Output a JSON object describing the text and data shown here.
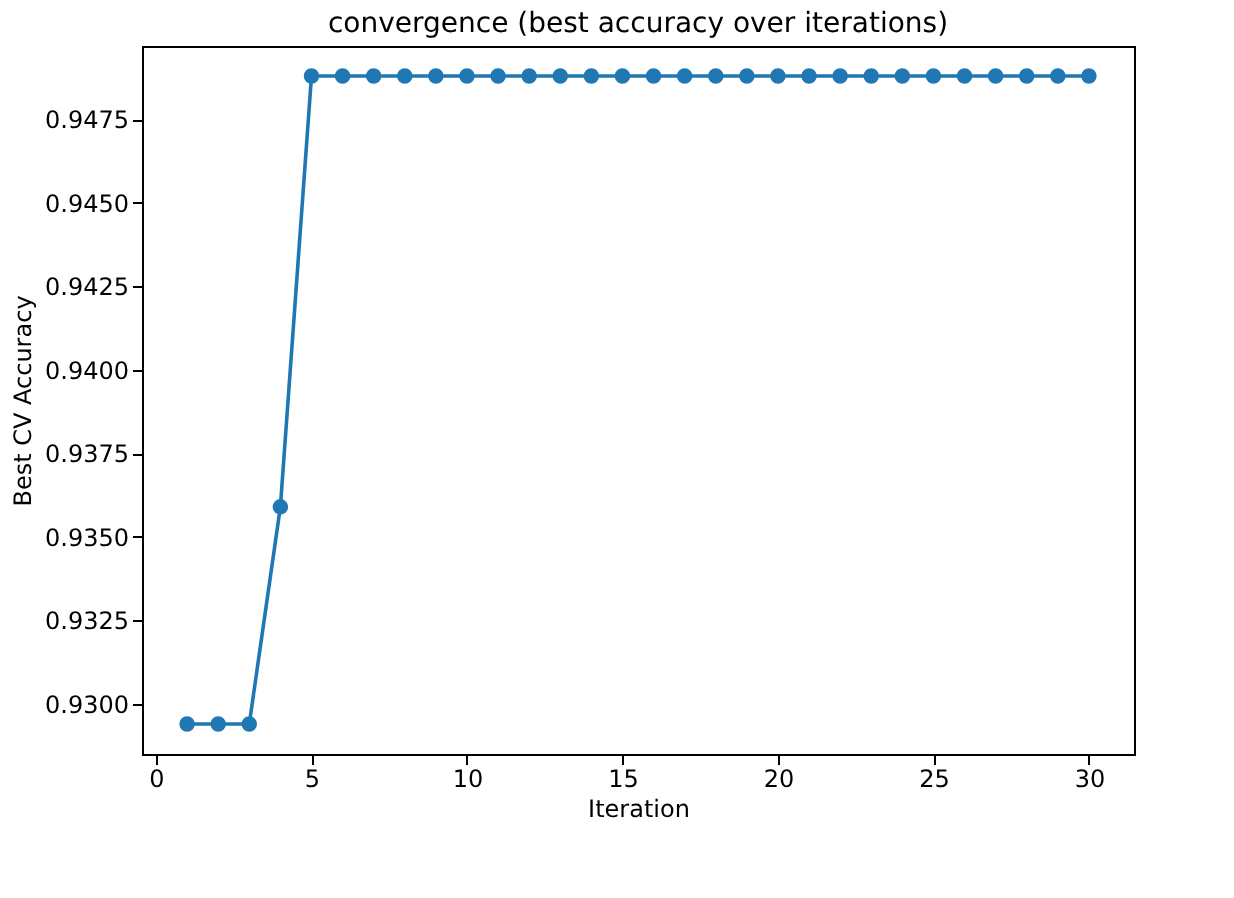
{
  "chart_data": {
    "type": "line",
    "title": "convergence (best accuracy over iterations)",
    "xlabel": "Iteration",
    "ylabel": "Best CV Accuracy",
    "x": [
      1,
      2,
      3,
      4,
      5,
      6,
      7,
      8,
      9,
      10,
      11,
      12,
      13,
      14,
      15,
      16,
      17,
      18,
      19,
      20,
      21,
      22,
      23,
      24,
      25,
      26,
      27,
      28,
      29,
      30
    ],
    "series": [
      {
        "color": "#1f77b4",
        "values": [
          0.9294,
          0.9294,
          0.9294,
          0.9359,
          0.9488,
          0.9488,
          0.9488,
          0.9488,
          0.9488,
          0.9488,
          0.9488,
          0.9488,
          0.9488,
          0.9488,
          0.9488,
          0.9488,
          0.9488,
          0.9488,
          0.9488,
          0.9488,
          0.9488,
          0.9488,
          0.9488,
          0.9488,
          0.9488,
          0.9488,
          0.9488,
          0.9488,
          0.9488,
          0.9488
        ]
      }
    ],
    "xlim": [
      -0.45,
      31.45
    ],
    "xticks": [
      0,
      5,
      10,
      15,
      20,
      25,
      30
    ],
    "ylim": [
      0.9285,
      0.9497
    ],
    "yticks": [
      {
        "value": 0.93,
        "label": "0.9300"
      },
      {
        "value": 0.9325,
        "label": "0.9325"
      },
      {
        "value": 0.935,
        "label": "0.9350"
      },
      {
        "value": 0.9375,
        "label": "0.9375"
      },
      {
        "value": 0.94,
        "label": "0.9400"
      },
      {
        "value": 0.9425,
        "label": "0.9425"
      },
      {
        "value": 0.945,
        "label": "0.9450"
      },
      {
        "value": 0.9475,
        "label": "0.9475"
      }
    ],
    "grid": false,
    "marker": "circle",
    "line_style": "solid"
  }
}
